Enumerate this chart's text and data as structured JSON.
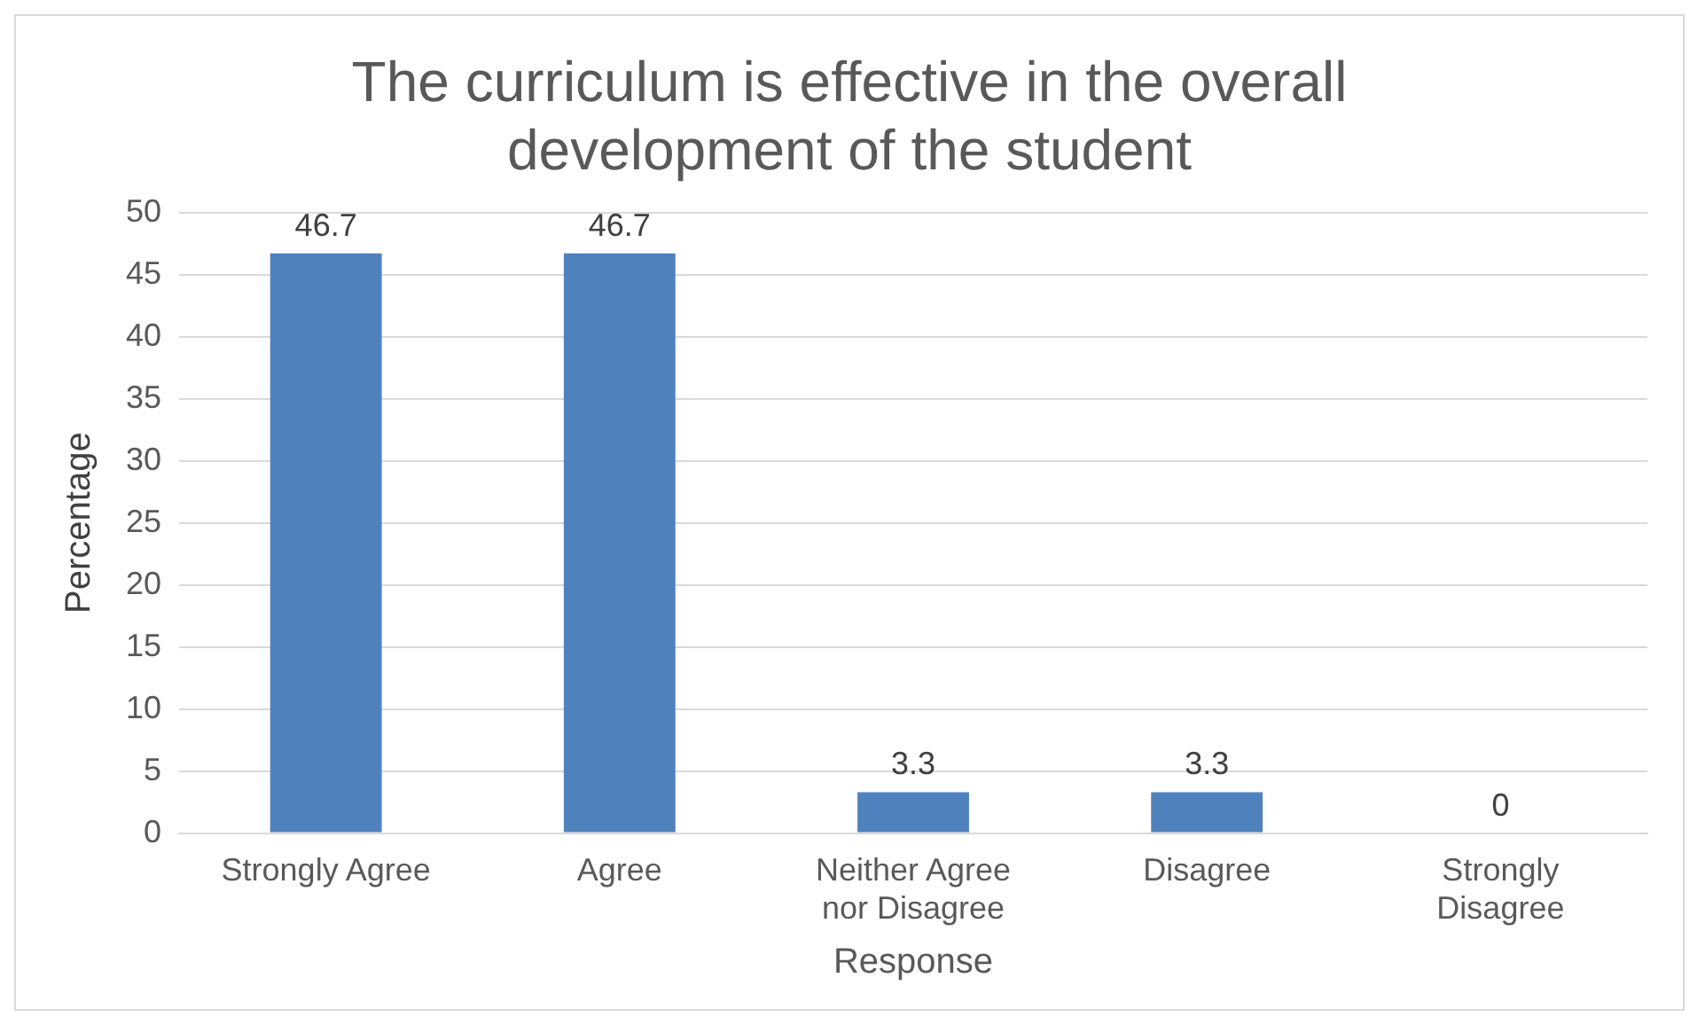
{
  "chart_data": {
    "type": "bar",
    "title": "The curriculum is effective in the overall development of the student",
    "xlabel": "Response",
    "ylabel": "Percentage",
    "categories": [
      "Strongly Agree",
      "Agree",
      "Neither Agree nor Disagree",
      "Disagree",
      "Strongly Disagree"
    ],
    "values": [
      46.7,
      46.7,
      3.3,
      3.3,
      0
    ],
    "color": "#4f81bd",
    "ylim": [
      0,
      50
    ],
    "yticks": [
      0,
      5,
      10,
      15,
      20,
      25,
      30,
      35,
      40,
      45,
      50
    ],
    "grid": "y",
    "data_labels": true,
    "legend": false
  }
}
